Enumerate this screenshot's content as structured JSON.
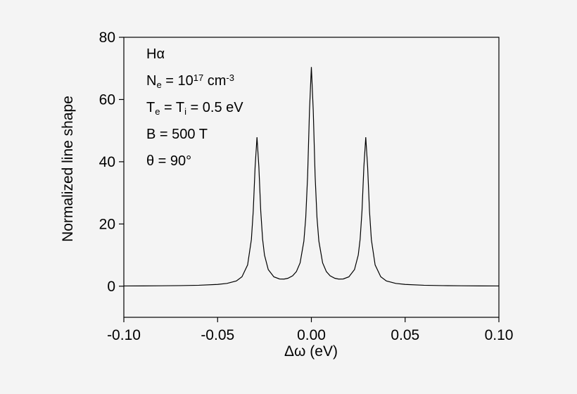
{
  "chart_data": {
    "type": "line",
    "xlabel": "Δω (eV)",
    "ylabel": "Normalized line shape",
    "annotations": [
      [
        {
          "t": "Hα"
        }
      ],
      [
        {
          "t": "N"
        },
        {
          "t": "e",
          "pos": "sub"
        },
        {
          "t": " = 10"
        },
        {
          "t": "17",
          "pos": "sup"
        },
        {
          "t": " cm"
        },
        {
          "t": "-3",
          "pos": "sup"
        }
      ],
      [
        {
          "t": "T"
        },
        {
          "t": "e",
          "pos": "sub"
        },
        {
          "t": " = T"
        },
        {
          "t": "i",
          "pos": "sub"
        },
        {
          "t": " = 0.5 eV"
        }
      ],
      [
        {
          "t": "B = 500 T"
        }
      ],
      [
        {
          "t": "θ = 90°"
        }
      ]
    ],
    "x": [
      -0.1,
      -0.09,
      -0.08,
      -0.07,
      -0.06,
      -0.05,
      -0.045,
      -0.04,
      -0.037,
      -0.034,
      -0.032,
      -0.031,
      -0.03,
      -0.029,
      -0.028,
      -0.027,
      -0.026,
      -0.025,
      -0.023,
      -0.02,
      -0.017,
      -0.0145,
      -0.0125,
      -0.01,
      -0.008,
      -0.006,
      -0.004,
      -0.003,
      -0.002,
      -0.001,
      0,
      0.001,
      0.002,
      0.003,
      0.004,
      0.006,
      0.008,
      0.01,
      0.0125,
      0.0145,
      0.017,
      0.02,
      0.023,
      0.025,
      0.026,
      0.027,
      0.028,
      0.029,
      0.03,
      0.031,
      0.032,
      0.034,
      0.037,
      0.04,
      0.045,
      0.05,
      0.06,
      0.07,
      0.08,
      0.09,
      0.1
    ],
    "series": [
      {
        "color": "#000000",
        "values": [
          0.08,
          0.1,
          0.13,
          0.19,
          0.3,
          0.57,
          0.9,
          1.69,
          3.04,
          6.84,
          14.94,
          24.09,
          38.36,
          47.89,
          38.41,
          24.19,
          15.09,
          10.01,
          5.35,
          3.01,
          2.33,
          2.3,
          2.55,
          3.34,
          4.68,
          7.51,
          14.48,
          22.0,
          35.46,
          56.45,
          70.45,
          56.45,
          35.46,
          22.0,
          14.48,
          7.51,
          4.68,
          3.34,
          2.55,
          2.3,
          2.33,
          3.01,
          5.35,
          10.01,
          15.09,
          24.19,
          38.41,
          47.89,
          38.36,
          24.09,
          14.94,
          6.84,
          3.04,
          1.69,
          0.9,
          0.57,
          0.3,
          0.19,
          0.13,
          0.1,
          0.08
        ]
      }
    ],
    "xlim": [
      -0.1,
      0.1
    ],
    "xticks": [
      {
        "value": -0.1,
        "label": "-0.10"
      },
      -0.05,
      {
        "value": 0,
        "label": "0.00"
      },
      0.05,
      {
        "value": 0.1,
        "label": "0.10"
      }
    ],
    "ylim": [
      -10,
      80
    ],
    "yticks": [
      0,
      20,
      40,
      60,
      80
    ]
  }
}
